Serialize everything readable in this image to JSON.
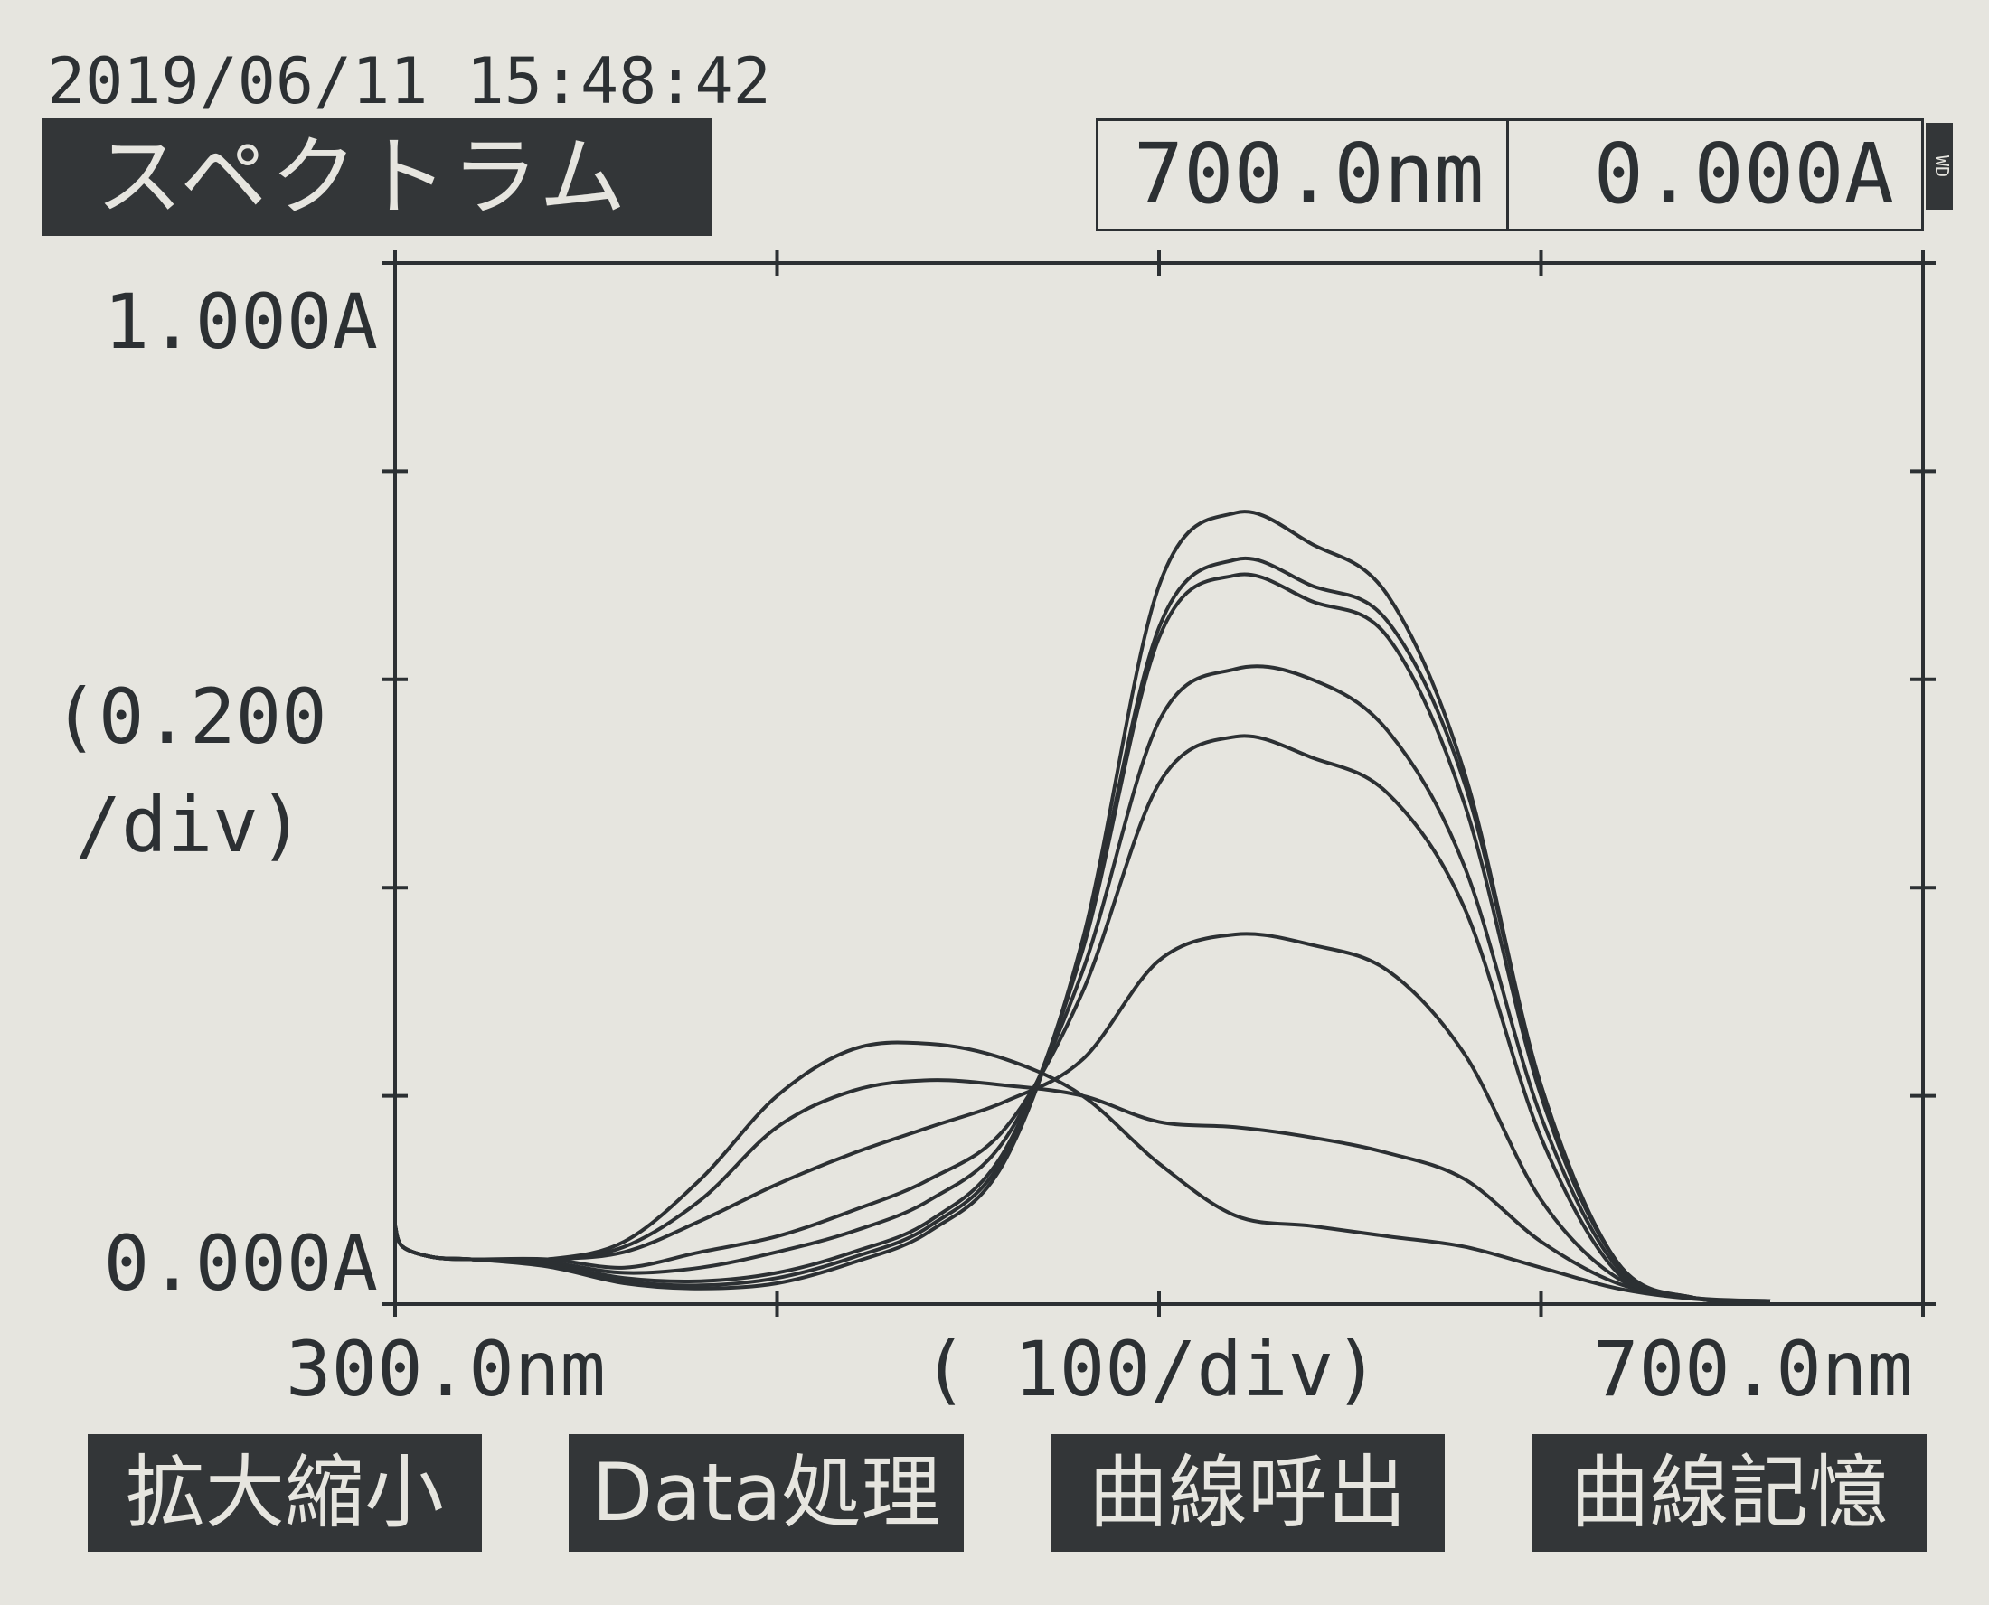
{
  "header": {
    "timestamp": "2019/06/11 15:48:42",
    "mode": "スペクトラム",
    "readout_wavelength": "700.0nm",
    "readout_absorbance": "0.000A",
    "side_tag": "WD"
  },
  "axes": {
    "y_top": "1.000A",
    "y_bottom": "0.000A",
    "y_scale_line1": "(0.200",
    "y_scale_line2": "/div)",
    "x_left": "300.0nm",
    "x_scale": "( 100/div)",
    "x_right": "700.0nm"
  },
  "function_keys": [
    "拡大縮小",
    "Data処理",
    "曲線呼出",
    "曲線記憶"
  ],
  "colors": {
    "ink": "#2c3033",
    "paper": "#e6e5df"
  },
  "chart_data": {
    "type": "line",
    "xlabel": "( 100/div)",
    "ylabel": "(0.200 /div)",
    "xlim": [
      300,
      700
    ],
    "ylim": [
      0,
      1.0
    ],
    "x_tick_step": 100,
    "y_tick_step": 0.2,
    "grid": false,
    "series": [
      {
        "x": [
          300,
          302,
          310,
          320,
          340,
          360,
          380,
          400,
          420,
          440,
          460,
          480,
          500,
          520,
          540,
          560,
          580,
          600,
          620,
          640,
          660
        ],
        "values": [
          0.075,
          0.055,
          0.045,
          0.043,
          0.043,
          0.06,
          0.12,
          0.2,
          0.245,
          0.25,
          0.235,
          0.2,
          0.135,
          0.085,
          0.075,
          0.065,
          0.055,
          0.035,
          0.015,
          0.005,
          0.003
        ]
      },
      {
        "x": [
          300,
          302,
          310,
          320,
          340,
          360,
          380,
          400,
          420,
          440,
          460,
          480,
          500,
          520,
          540,
          560,
          580,
          600,
          620,
          640,
          660
        ],
        "values": [
          0.075,
          0.055,
          0.045,
          0.043,
          0.043,
          0.055,
          0.1,
          0.17,
          0.205,
          0.215,
          0.21,
          0.2,
          0.175,
          0.17,
          0.16,
          0.145,
          0.12,
          0.06,
          0.02,
          0.006,
          0.003
        ]
      },
      {
        "x": [
          300,
          302,
          310,
          320,
          340,
          360,
          380,
          400,
          420,
          440,
          460,
          480,
          500,
          520,
          540,
          560,
          580,
          600,
          620,
          640,
          660
        ],
        "values": [
          0.075,
          0.055,
          0.045,
          0.043,
          0.043,
          0.05,
          0.08,
          0.115,
          0.145,
          0.17,
          0.195,
          0.235,
          0.33,
          0.355,
          0.345,
          0.32,
          0.24,
          0.1,
          0.025,
          0.006,
          0.003
        ]
      },
      {
        "x": [
          300,
          302,
          310,
          320,
          340,
          360,
          380,
          400,
          420,
          440,
          460,
          480,
          500,
          520,
          540,
          560,
          580,
          600,
          620,
          640,
          660
        ],
        "values": [
          0.075,
          0.055,
          0.045,
          0.043,
          0.043,
          0.035,
          0.05,
          0.065,
          0.09,
          0.12,
          0.17,
          0.3,
          0.5,
          0.545,
          0.525,
          0.49,
          0.38,
          0.16,
          0.03,
          0.006,
          0.003
        ]
      },
      {
        "x": [
          300,
          302,
          310,
          320,
          340,
          360,
          380,
          400,
          420,
          440,
          460,
          480,
          500,
          520,
          540,
          560,
          580,
          600,
          620,
          640,
          660
        ],
        "values": [
          0.075,
          0.055,
          0.045,
          0.043,
          0.04,
          0.03,
          0.035,
          0.05,
          0.07,
          0.1,
          0.16,
          0.32,
          0.56,
          0.61,
          0.6,
          0.55,
          0.42,
          0.18,
          0.035,
          0.006,
          0.003
        ]
      },
      {
        "x": [
          300,
          302,
          310,
          320,
          340,
          360,
          380,
          400,
          420,
          440,
          460,
          480,
          500,
          520,
          540,
          560,
          580,
          600,
          620,
          640,
          660
        ],
        "values": [
          0.075,
          0.055,
          0.045,
          0.043,
          0.038,
          0.025,
          0.022,
          0.03,
          0.05,
          0.08,
          0.15,
          0.34,
          0.64,
          0.7,
          0.675,
          0.64,
          0.48,
          0.2,
          0.04,
          0.006,
          0.003
        ]
      },
      {
        "x": [
          300,
          302,
          310,
          320,
          340,
          360,
          380,
          400,
          420,
          440,
          460,
          480,
          500,
          520,
          540,
          560,
          580,
          600,
          620,
          640,
          660
        ],
        "values": [
          0.075,
          0.055,
          0.045,
          0.043,
          0.037,
          0.022,
          0.018,
          0.025,
          0.045,
          0.075,
          0.145,
          0.345,
          0.65,
          0.715,
          0.69,
          0.655,
          0.5,
          0.21,
          0.04,
          0.006,
          0.003
        ]
      },
      {
        "x": [
          300,
          302,
          310,
          320,
          340,
          360,
          380,
          400,
          420,
          440,
          460,
          480,
          500,
          520,
          540,
          560,
          580,
          600,
          620,
          640,
          660
        ],
        "values": [
          0.075,
          0.055,
          0.045,
          0.043,
          0.036,
          0.02,
          0.015,
          0.02,
          0.04,
          0.07,
          0.14,
          0.35,
          0.69,
          0.76,
          0.73,
          0.68,
          0.51,
          0.21,
          0.04,
          0.006,
          0.003
        ]
      }
    ]
  }
}
